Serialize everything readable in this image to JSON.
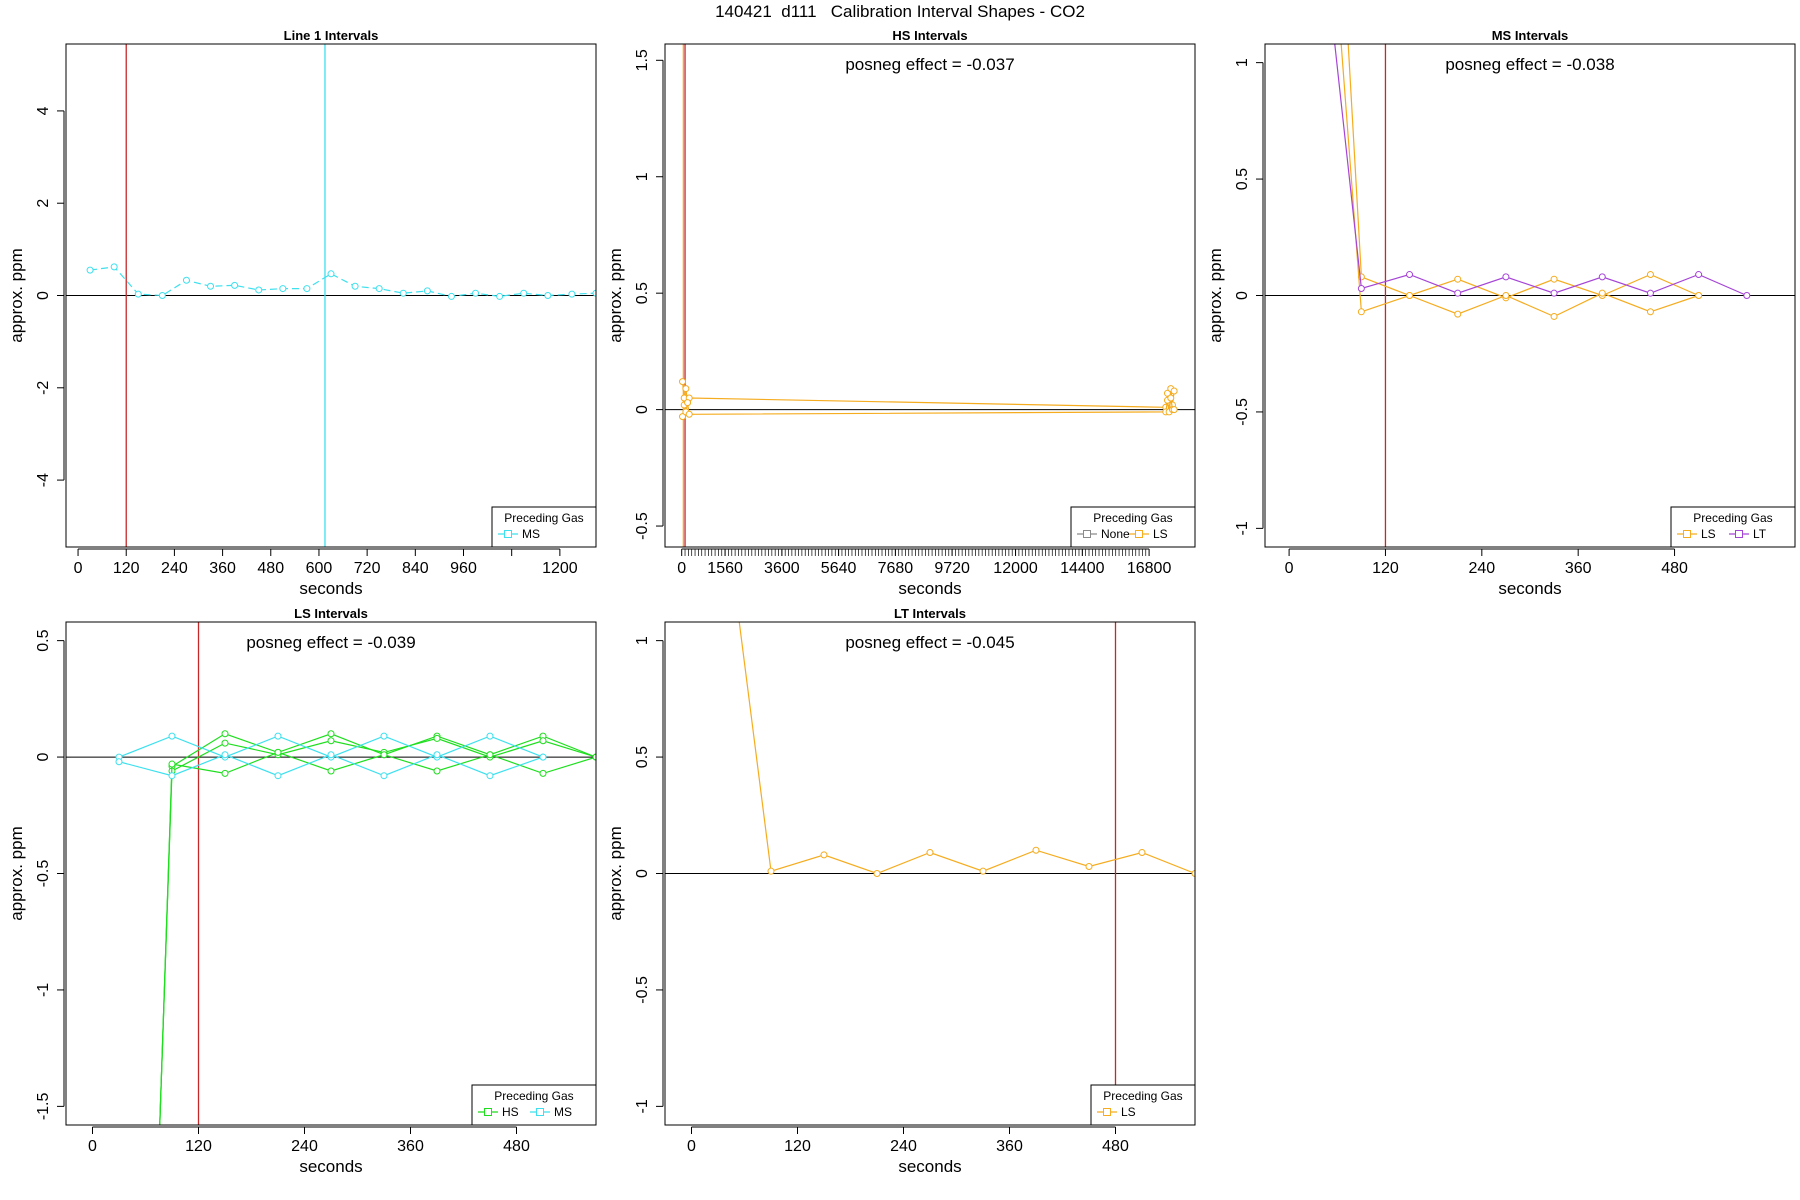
{
  "figure": {
    "title": "140421  d111   Calibration Interval Shapes - CO2"
  },
  "legend_title": "Preceding Gas",
  "colors": {
    "red_line": "#c62828",
    "zero_line": "#000000",
    "cyan": "#3de0ee",
    "orange": "#f5ac1f",
    "purple": "#a545d6",
    "green": "#1fde1f",
    "gray": "#8a8a8a"
  },
  "chart_data": [
    {
      "id": "line1",
      "type": "line",
      "title": "Line 1 Intervals",
      "xlabel": "seconds",
      "ylabel": "approx. ppm",
      "annotation": "",
      "xlim": [
        -30,
        1290
      ],
      "ylim": [
        -5.45,
        5.45
      ],
      "xticks": [
        0,
        120,
        240,
        360,
        480,
        600,
        720,
        840,
        960,
        1200
      ],
      "yticks": [
        -4,
        -2,
        0,
        2,
        4
      ],
      "minor_xticks": [
        1080
      ],
      "vlines": [
        {
          "x": 120,
          "color": "red"
        },
        {
          "x": 615,
          "color": "cyan"
        }
      ],
      "legend": [
        {
          "label": "MS",
          "color": "cyan"
        }
      ],
      "series": [
        {
          "name": "MS",
          "color": "cyan",
          "dashed": true,
          "x": [
            30,
            90,
            150,
            210,
            270,
            330,
            390,
            450,
            510,
            570,
            630,
            690,
            750,
            810,
            870,
            930,
            990,
            1050,
            1110,
            1170,
            1230,
            1290
          ],
          "y": [
            0.55,
            0.62,
            0.03,
            0.0,
            0.33,
            0.2,
            0.22,
            0.12,
            0.15,
            0.15,
            0.47,
            0.2,
            0.15,
            0.05,
            0.1,
            -0.02,
            0.05,
            -0.02,
            0.05,
            0.0,
            0.03,
            0.05
          ]
        }
      ]
    },
    {
      "id": "hs",
      "type": "line",
      "title": "HS Intervals",
      "xlabel": "seconds",
      "ylabel": "approx. ppm",
      "annotation": "posneg effect = -0.037",
      "xlim": [
        -600,
        18450
      ],
      "ylim": [
        -0.59,
        1.57
      ],
      "xticks": [
        0,
        1560,
        3600,
        5640,
        7680,
        9720,
        12000,
        14400,
        16800
      ],
      "yticks": [
        -0.5,
        0.0,
        0.5,
        1.0,
        1.5
      ],
      "minor_xtick_step": 120,
      "vlines": [
        {
          "x": 120,
          "color": "red"
        },
        {
          "x": 60,
          "color": "orange"
        }
      ],
      "legend": [
        {
          "label": "None",
          "color": "gray"
        },
        {
          "label": "LS",
          "color": "orange"
        }
      ],
      "series": [
        {
          "name": "LS",
          "color": "orange",
          "dashed": false,
          "x": [
            30,
            90,
            150,
            210,
            270,
            17400,
            17460,
            17520,
            17580,
            17640,
            17700
          ],
          "y": [
            0.12,
            0.05,
            0.09,
            0.03,
            0.05,
            0.01,
            0.07,
            0.03,
            0.09,
            0.02,
            0.08
          ]
        },
        {
          "name": "LS",
          "color": "orange",
          "dashed": false,
          "x": [
            30,
            90,
            150,
            210,
            270,
            17400,
            17460,
            17520,
            17580,
            17640,
            17700
          ],
          "y": [
            -0.03,
            0.02,
            -0.01,
            0.03,
            -0.02,
            -0.01,
            0.04,
            -0.01,
            0.05,
            0.0,
            0.0
          ]
        }
      ]
    },
    {
      "id": "ms",
      "type": "line",
      "title": "MS Intervals",
      "xlabel": "seconds",
      "ylabel": "approx. ppm",
      "annotation": "posneg effect = -0.038",
      "xlim": [
        -30,
        630
      ],
      "ylim": [
        -1.08,
        1.08
      ],
      "xticks": [
        0,
        120,
        240,
        360,
        480
      ],
      "yticks": [
        -1.0,
        -0.5,
        0.0,
        0.5,
        1.0
      ],
      "vlines": [
        {
          "x": 120,
          "color": "red"
        }
      ],
      "legend": [
        {
          "label": "LS",
          "color": "orange"
        },
        {
          "label": "LT",
          "color": "purple"
        }
      ],
      "series": [
        {
          "name": "LS",
          "color": "orange",
          "dashed": false,
          "x": [
            70,
            90,
            150,
            210,
            270,
            330,
            390,
            450,
            510
          ],
          "y": [
            1.3,
            0.08,
            0.0,
            0.07,
            -0.01,
            0.07,
            0.0,
            0.09,
            0.0
          ]
        },
        {
          "name": "LS",
          "color": "orange",
          "dashed": false,
          "x": [
            60,
            90,
            150,
            210,
            270,
            330,
            390,
            450,
            510
          ],
          "y": [
            1.3,
            -0.07,
            0.0,
            -0.08,
            0.0,
            -0.09,
            0.01,
            -0.07,
            0.0
          ]
        },
        {
          "name": "LT",
          "color": "purple",
          "dashed": false,
          "x": [
            50,
            90,
            150,
            210,
            270,
            330,
            390,
            450,
            510,
            570
          ],
          "y": [
            1.3,
            0.03,
            0.09,
            0.01,
            0.08,
            0.01,
            0.08,
            0.01,
            0.09,
            0.0
          ]
        }
      ]
    },
    {
      "id": "ls",
      "type": "line",
      "title": "LS Intervals",
      "xlabel": "seconds",
      "ylabel": "approx. ppm",
      "annotation": "posneg effect = -0.039",
      "xlim": [
        -30,
        570
      ],
      "ylim": [
        -1.58,
        0.58
      ],
      "xticks": [
        0,
        120,
        240,
        360,
        480
      ],
      "yticks": [
        -1.5,
        -1.0,
        -0.5,
        0.0,
        0.5
      ],
      "vlines": [
        {
          "x": 120,
          "color": "red"
        }
      ],
      "legend": [
        {
          "label": "HS",
          "color": "green"
        },
        {
          "label": "MS",
          "color": "cyan"
        }
      ],
      "series": [
        {
          "name": "HS",
          "color": "green",
          "dashed": false,
          "x": [
            75,
            90,
            150,
            210,
            270,
            330,
            390,
            450,
            510,
            570
          ],
          "y": [
            -1.7,
            -0.04,
            0.1,
            0.02,
            0.1,
            0.01,
            0.09,
            0.01,
            0.09,
            0.0
          ]
        },
        {
          "name": "HS",
          "color": "green",
          "dashed": false,
          "x": [
            75,
            90,
            150,
            210,
            270,
            330,
            390,
            450,
            510,
            570
          ],
          "y": [
            -1.7,
            -0.06,
            0.06,
            0.01,
            0.07,
            0.02,
            0.08,
            0.0,
            0.07,
            0.0
          ]
        },
        {
          "name": "HS",
          "color": "green",
          "dashed": false,
          "x": [
            75,
            90,
            150,
            210,
            270,
            330,
            390,
            450,
            510,
            570
          ],
          "y": [
            -1.7,
            -0.03,
            -0.07,
            0.02,
            -0.06,
            0.01,
            -0.06,
            0.01,
            -0.07,
            0.0
          ]
        },
        {
          "name": "MS",
          "color": "cyan",
          "dashed": false,
          "x": [
            30,
            90,
            150,
            210,
            270,
            330,
            390,
            450,
            510
          ],
          "y": [
            0.0,
            0.09,
            0.0,
            0.09,
            0.0,
            0.09,
            0.0,
            0.09,
            0.0
          ]
        },
        {
          "name": "MS",
          "color": "cyan",
          "dashed": false,
          "x": [
            30,
            90,
            150,
            210,
            270,
            330,
            390,
            450,
            510
          ],
          "y": [
            -0.02,
            -0.08,
            0.01,
            -0.08,
            0.01,
            -0.08,
            0.01,
            -0.08,
            0.0
          ]
        }
      ]
    },
    {
      "id": "lt",
      "type": "line",
      "title": "LT Intervals",
      "xlabel": "seconds",
      "ylabel": "approx. ppm",
      "annotation": "posneg effect = -0.045",
      "xlim": [
        -30,
        570
      ],
      "ylim": [
        -1.08,
        1.08
      ],
      "xticks": [
        0,
        120,
        240,
        360,
        480
      ],
      "yticks": [
        -1.0,
        -0.5,
        0.0,
        0.5,
        1.0
      ],
      "vlines": [
        {
          "x": 480,
          "color": "red"
        }
      ],
      "legend": [
        {
          "label": "LS",
          "color": "orange"
        }
      ],
      "series": [
        {
          "name": "LS",
          "color": "orange",
          "dashed": false,
          "x": [
            50,
            90,
            150,
            210,
            270,
            330,
            390,
            450,
            510,
            570
          ],
          "y": [
            1.2,
            0.01,
            0.08,
            0.0,
            0.09,
            0.01,
            0.1,
            0.03,
            0.09,
            0.0
          ]
        }
      ]
    }
  ]
}
